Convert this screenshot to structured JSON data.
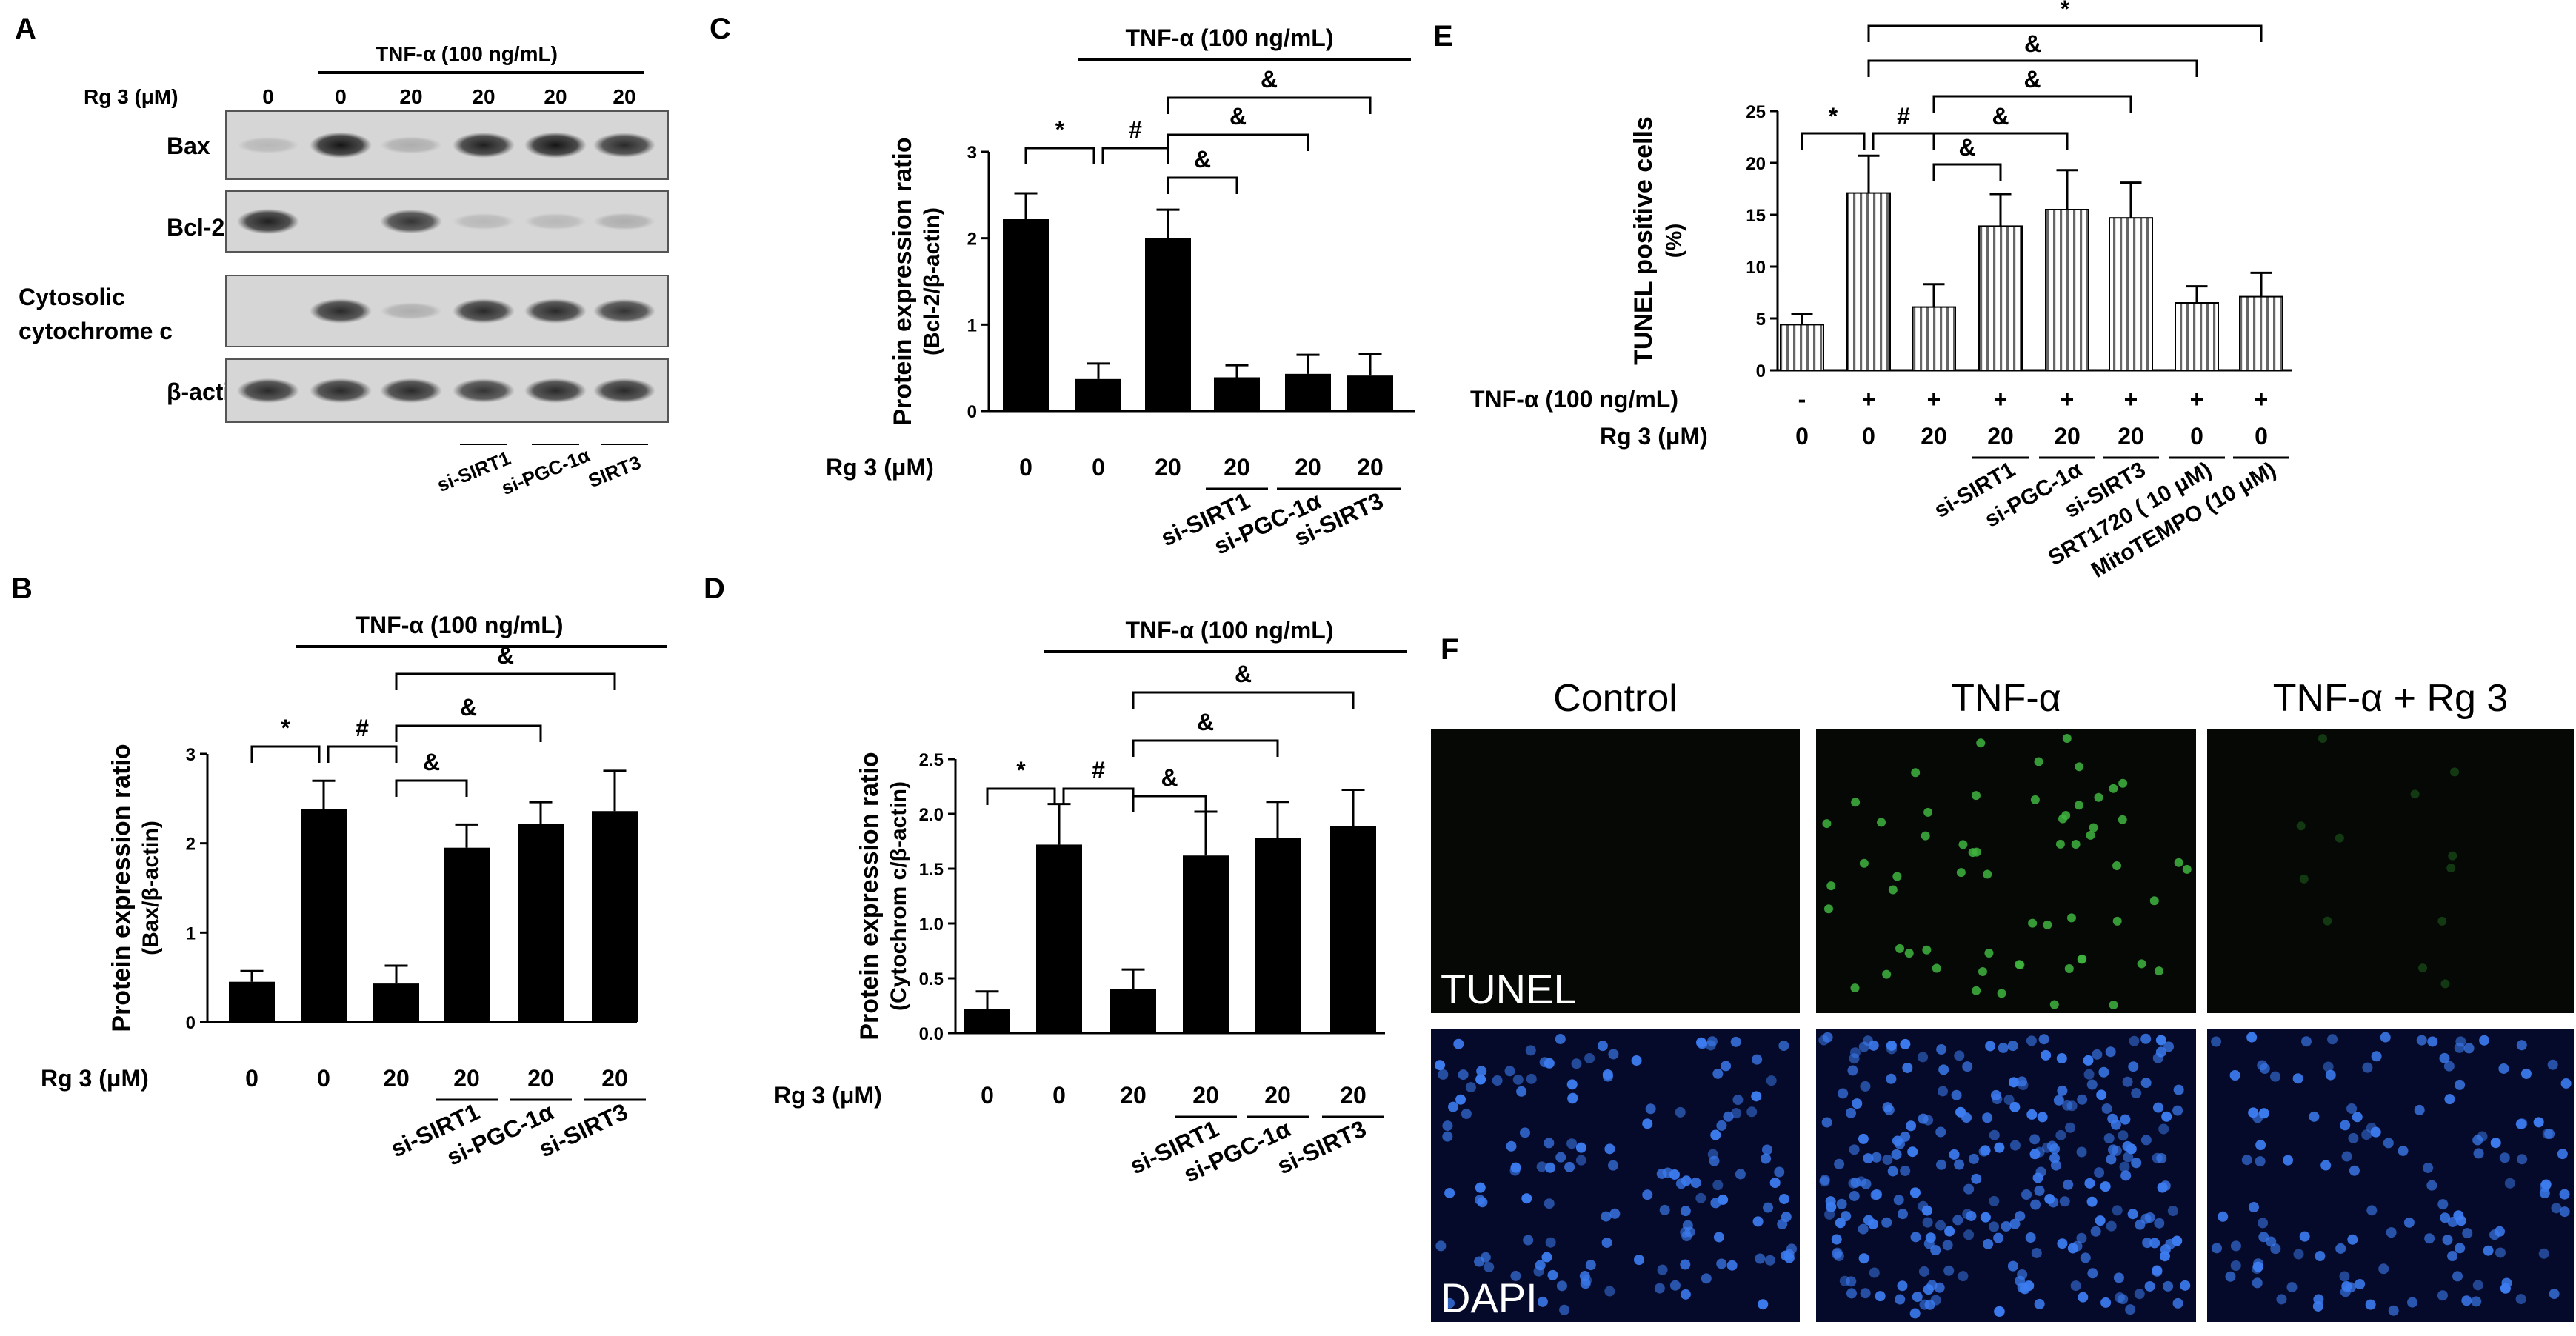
{
  "panels": {
    "A": {
      "letter": "A",
      "tnf_label": "TNF-α (100 ng/mL)",
      "dose_label": "Rg 3 (μM)",
      "doses": [
        "0",
        "0",
        "20",
        "20",
        "20",
        "20"
      ],
      "rows": [
        "Bax",
        "Bcl-2",
        "Cytosolic cytochrome c",
        "β-actin"
      ],
      "si_labels": [
        "si-SIRT1",
        "si-PGC-1α",
        "SIRT3"
      ]
    },
    "F": {
      "letter": "F",
      "columns": [
        "Control",
        "TNF-α",
        "TNF-α + Rg 3"
      ],
      "row_labels": [
        "TUNEL",
        "DAPI"
      ]
    }
  },
  "chart_data": [
    {
      "panel": "B",
      "type": "bar",
      "tnf_label": "TNF-α (100 ng/mL)",
      "ylabel": "Protein expression ratio",
      "ylabel2": "(Bax/β-actin)",
      "dose_label": "Rg 3 (μM)",
      "categories": [
        "0",
        "0",
        "20",
        "20",
        "20",
        "20"
      ],
      "si_labels": [
        "si-SIRT1",
        "si-PGC-1α",
        "si-SIRT3"
      ],
      "values": [
        0.45,
        2.38,
        0.43,
        1.95,
        2.22,
        2.36
      ],
      "errors": [
        0.12,
        0.32,
        0.2,
        0.26,
        0.24,
        0.45
      ],
      "ylim": [
        0,
        3
      ],
      "yticks": [
        "0",
        "1",
        "2",
        "3"
      ],
      "sig": [
        "*",
        "#",
        "&",
        "&",
        "&"
      ]
    },
    {
      "panel": "C",
      "type": "bar",
      "tnf_label": "TNF-α (100 ng/mL)",
      "ylabel": "Protein expression ratio",
      "ylabel2": "(Bcl-2/β-actin)",
      "dose_label": "Rg 3 (μM)",
      "categories": [
        "0",
        "0",
        "20",
        "20",
        "20",
        "20"
      ],
      "si_labels": [
        "si-SIRT1",
        "si-PGC-1α",
        "si-SIRT3"
      ],
      "values": [
        2.22,
        0.37,
        2.0,
        0.39,
        0.43,
        0.41
      ],
      "errors": [
        0.3,
        0.18,
        0.33,
        0.14,
        0.22,
        0.25
      ],
      "ylim": [
        0,
        3
      ],
      "yticks": [
        "0",
        "1",
        "2",
        "3"
      ],
      "sig": [
        "*",
        "#",
        "&",
        "&",
        "&"
      ]
    },
    {
      "panel": "D",
      "type": "bar",
      "tnf_label": "TNF-α (100 ng/mL)",
      "ylabel": "Protein expression ratio",
      "ylabel2": "(Cytochrom c/β-actin)",
      "dose_label": "Rg 3 (μM)",
      "categories": [
        "0",
        "0",
        "20",
        "20",
        "20",
        "20"
      ],
      "si_labels": [
        "si-SIRT1",
        "si-PGC-1α",
        "si-SIRT3"
      ],
      "values": [
        0.22,
        1.72,
        0.4,
        1.62,
        1.78,
        1.89
      ],
      "errors": [
        0.16,
        0.37,
        0.18,
        0.4,
        0.33,
        0.33
      ],
      "ylim": [
        0,
        2.5
      ],
      "yticks": [
        "0.0",
        "0.5",
        "1.0",
        "1.5",
        "2.0",
        "2.5"
      ],
      "sig": [
        "*",
        "#",
        "&",
        "&",
        "&"
      ]
    },
    {
      "panel": "E",
      "type": "bar",
      "ylabel": "TUNEL positive cells",
      "ylabel2": "(%)",
      "tnf_row_label": "TNF-α (100 ng/mL)",
      "tnf_signs": [
        "-",
        "+",
        "+",
        "+",
        "+",
        "+",
        "+",
        "+"
      ],
      "dose_label": "Rg 3 (μM)",
      "categories": [
        "0",
        "0",
        "20",
        "20",
        "20",
        "20",
        "0",
        "0"
      ],
      "treatment_labels": [
        "si-SIRT1",
        "si-PGC-1α",
        "si-SIRT3",
        "SRT1720 ( 10 μM)",
        "MitoTEMPO (10 μM)"
      ],
      "values": [
        4.4,
        17.1,
        6.1,
        13.9,
        15.5,
        14.7,
        6.5,
        7.1
      ],
      "errors": [
        1.0,
        3.6,
        2.2,
        3.1,
        3.8,
        3.4,
        1.6,
        2.3
      ],
      "ylim": [
        0,
        25
      ],
      "yticks": [
        "0",
        "5",
        "10",
        "15",
        "20",
        "25"
      ],
      "sig": [
        "*",
        "#",
        "&",
        "&",
        "&",
        "&",
        "*"
      ]
    }
  ]
}
